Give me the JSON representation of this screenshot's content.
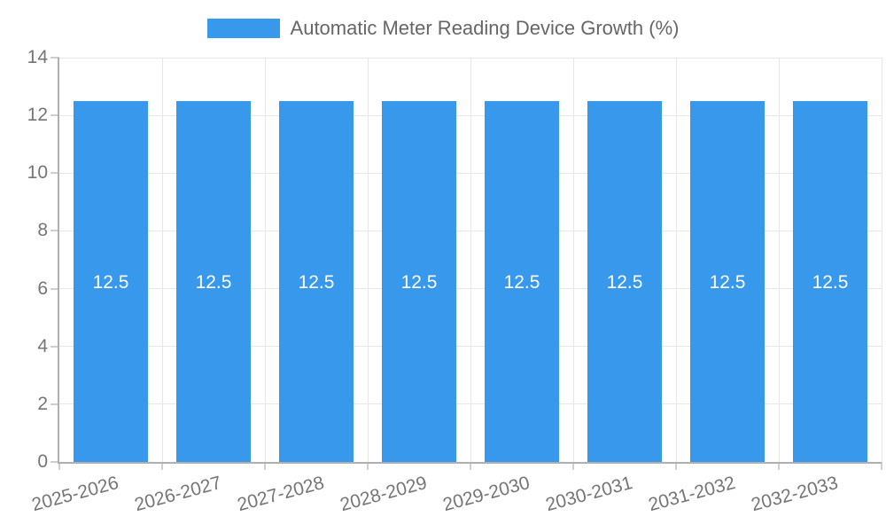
{
  "legend": {
    "series_label": "Automatic Meter Reading Device Growth (%)"
  },
  "chart_data": {
    "type": "bar",
    "title": "Automatic Meter Reading Device Growth (%)",
    "categories": [
      "2025-2026",
      "2026-2027",
      "2027-2028",
      "2028-2029",
      "2029-2030",
      "2030-2031",
      "2031-2032",
      "2032-2033"
    ],
    "values": [
      12.5,
      12.5,
      12.5,
      12.5,
      12.5,
      12.5,
      12.5,
      12.5
    ],
    "bar_labels": [
      "12.5",
      "12.5",
      "12.5",
      "12.5",
      "12.5",
      "12.5",
      "12.5",
      "12.5"
    ],
    "xlabel": "",
    "ylabel": "",
    "ylim": [
      0,
      14
    ],
    "yticks": [
      0,
      2,
      4,
      6,
      8,
      10,
      12,
      14
    ],
    "grid": true,
    "legend_position": "top",
    "xtick_rotation_deg": -15,
    "colors": {
      "bar": "#3898ec",
      "bar_label": "#ffffff",
      "axis_text": "#757575",
      "title_text": "#666666",
      "gridline": "#e7e7e7",
      "axis_line": "#b0b0b0",
      "tick_mark": "#cfcfcf",
      "background": "#ffffff"
    }
  }
}
